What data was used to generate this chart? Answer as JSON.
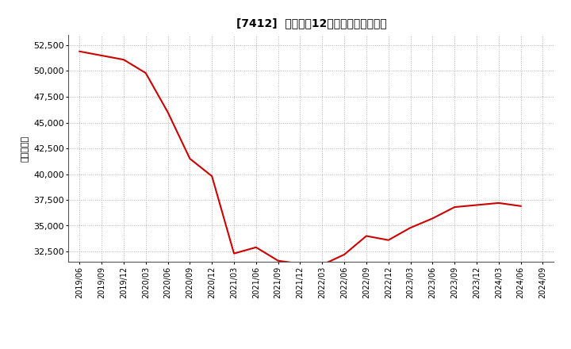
{
  "title": "[7412]  売上高の12か月移動合計の推移",
  "ylabel": "（百万円）",
  "line_color": "#cc0000",
  "background_color": "#ffffff",
  "grid_color": "#b0b0b0",
  "ylim": [
    31500,
    53500
  ],
  "yticks": [
    32500,
    35000,
    37500,
    40000,
    42500,
    45000,
    47500,
    50000,
    52500
  ],
  "dates": [
    "2019/06",
    "2019/09",
    "2019/12",
    "2020/03",
    "2020/06",
    "2020/09",
    "2020/12",
    "2021/03",
    "2021/06",
    "2021/09",
    "2021/12",
    "2022/03",
    "2022/06",
    "2022/09",
    "2022/12",
    "2023/03",
    "2023/06",
    "2023/09",
    "2023/12",
    "2024/03",
    "2024/06",
    "2024/09"
  ],
  "values": [
    51900,
    51500,
    51100,
    49800,
    46000,
    41500,
    39800,
    32300,
    32900,
    31600,
    31300,
    31200,
    32200,
    34000,
    33600,
    34800,
    35700,
    36800,
    37000,
    37200,
    36900,
    null
  ]
}
